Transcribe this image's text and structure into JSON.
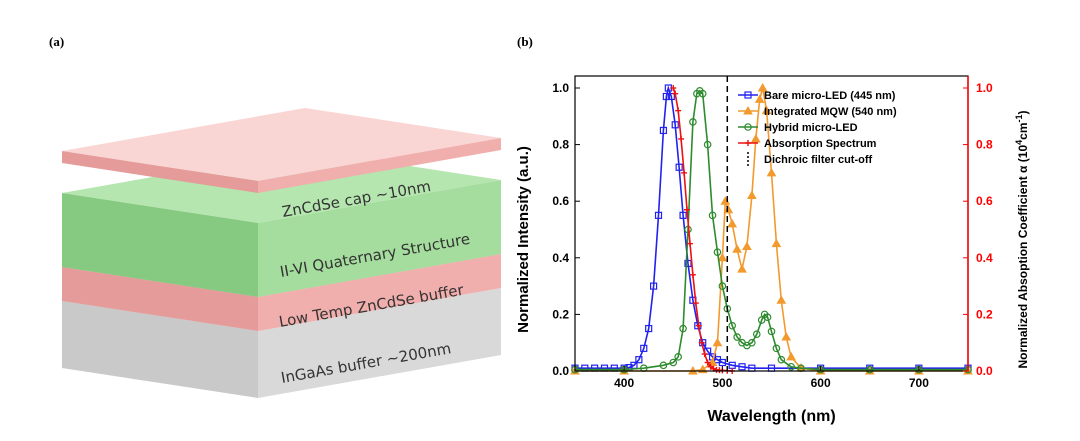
{
  "panels": {
    "a": "(a)",
    "b": "(b)"
  },
  "stack": {
    "layers": [
      {
        "label": "ZnCdSe cap ~10nm",
        "color": "#f2b6b4"
      },
      {
        "label": "II-VI Quaternary Structure",
        "color": "#a9e1a3"
      },
      {
        "label": "Low Temp ZnCdSe buffer",
        "color": "#f2b6b4"
      },
      {
        "label": "InGaAs buffer ~200nm",
        "color": "#dcdcdc"
      }
    ]
  },
  "chart_data": {
    "type": "line",
    "xlabel": "Wavelength (nm)",
    "ylabel": "Normalized Intensity (a.u.)",
    "ylabel_right_parts": [
      "Normalized Absoption Coefficient α (10",
      "4",
      "cm",
      "-1",
      ")"
    ],
    "xlim": [
      350,
      750
    ],
    "ylim": [
      0,
      1.0
    ],
    "ylim_right": [
      0,
      1.0
    ],
    "x_ticks": [
      400,
      500,
      600,
      700
    ],
    "y_ticks": [
      "0.0",
      "0.2",
      "0.4",
      "0.6",
      "0.8",
      "1.0"
    ],
    "y_ticks_right": [
      "0.0",
      "0.2",
      "0.4",
      "0.6",
      "0.8",
      "1.0"
    ],
    "axis_colors": {
      "left": "#000000",
      "right": "#ff0000"
    },
    "legend_position": "top-right",
    "series": [
      {
        "name": "Bare micro-LED (445 nm)",
        "color": "#2222ee",
        "marker": "square",
        "x": [
          350,
          360,
          370,
          380,
          390,
          400,
          405,
          410,
          415,
          420,
          425,
          430,
          435,
          440,
          443,
          445,
          448,
          452,
          456,
          460,
          465,
          470,
          475,
          480,
          485,
          490,
          495,
          500,
          510,
          520,
          530,
          550,
          600,
          650,
          700,
          750
        ],
        "y": [
          0.01,
          0.01,
          0.01,
          0.01,
          0.01,
          0.01,
          0.012,
          0.02,
          0.04,
          0.08,
          0.15,
          0.3,
          0.55,
          0.85,
          0.97,
          1.0,
          0.97,
          0.87,
          0.72,
          0.55,
          0.38,
          0.25,
          0.16,
          0.1,
          0.07,
          0.05,
          0.04,
          0.03,
          0.02,
          0.015,
          0.01,
          0.01,
          0.01,
          0.01,
          0.01,
          0.01
        ]
      },
      {
        "name": "Integrated MQW (540 nm)",
        "color": "#f39a2e",
        "marker": "triangle",
        "x": [
          350,
          400,
          470,
          480,
          490,
          495,
          500,
          503,
          506,
          510,
          515,
          520,
          525,
          530,
          534,
          538,
          541,
          545,
          550,
          555,
          560,
          565,
          570,
          580,
          600,
          650,
          700,
          750
        ],
        "y": [
          0.0,
          0.0,
          0.0,
          0.005,
          0.03,
          0.1,
          0.4,
          0.6,
          0.57,
          0.52,
          0.43,
          0.36,
          0.44,
          0.62,
          0.82,
          0.96,
          1.0,
          0.92,
          0.7,
          0.45,
          0.25,
          0.12,
          0.05,
          0.01,
          0.0,
          0.0,
          0.0,
          0.0
        ]
      },
      {
        "name": "Hybrid micro-LED",
        "color": "#2e8b2e",
        "marker": "circle",
        "x": [
          350,
          400,
          420,
          440,
          450,
          455,
          460,
          465,
          470,
          474,
          477,
          480,
          485,
          490,
          495,
          500,
          505,
          510,
          515,
          520,
          525,
          530,
          535,
          540,
          543,
          546,
          550,
          555,
          560,
          570,
          580,
          600,
          650,
          700,
          750
        ],
        "y": [
          0.005,
          0.005,
          0.01,
          0.02,
          0.03,
          0.05,
          0.15,
          0.5,
          0.88,
          0.98,
          0.99,
          0.98,
          0.8,
          0.55,
          0.42,
          0.3,
          0.22,
          0.16,
          0.12,
          0.1,
          0.09,
          0.1,
          0.13,
          0.18,
          0.2,
          0.19,
          0.14,
          0.08,
          0.04,
          0.015,
          0.01,
          0.005,
          0.005,
          0.005,
          0.005
        ]
      },
      {
        "name": "Absorption Spectrum",
        "color": "#ee1111",
        "marker": "plus",
        "x": [
          450,
          452,
          455,
          458,
          461,
          464,
          467,
          470,
          473,
          476,
          479,
          482,
          485,
          488,
          491,
          494,
          497,
          500,
          505,
          510
        ],
        "y": [
          1.0,
          0.98,
          0.92,
          0.82,
          0.7,
          0.57,
          0.45,
          0.34,
          0.24,
          0.16,
          0.1,
          0.06,
          0.03,
          0.015,
          0.008,
          0.004,
          0.003,
          0.002,
          0.001,
          0.0
        ]
      },
      {
        "name": "Dichroic filter cut-off",
        "color": "#000000",
        "marker": "dash",
        "vline": 505
      }
    ]
  }
}
